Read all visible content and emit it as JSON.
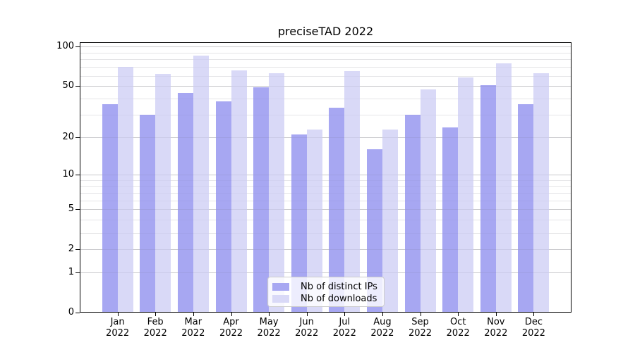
{
  "title": "preciseTAD 2022",
  "chart_data": {
    "type": "bar",
    "title": "preciseTAD 2022",
    "categories": [
      "Jan",
      "Feb",
      "Mar",
      "Apr",
      "May",
      "Jun",
      "Jul",
      "Aug",
      "Sep",
      "Oct",
      "Nov",
      "Dec"
    ],
    "year_label": "2022",
    "series": [
      {
        "name": "Nb of distinct IPs",
        "color": "#a7a7f2",
        "values": [
          36,
          30,
          44,
          38,
          49,
          21,
          34,
          16,
          30,
          24,
          51,
          36
        ]
      },
      {
        "name": "Nb of downloads",
        "color": "#d9d9f7",
        "values": [
          70,
          62,
          85,
          66,
          63,
          23,
          65,
          23,
          47,
          58,
          75,
          63
        ]
      }
    ],
    "y_ticks": [
      0,
      1,
      2,
      5,
      10,
      20,
      50,
      100
    ],
    "y_scale": "log10(1+x)",
    "ylim": [
      0,
      107
    ],
    "grid": true,
    "legend_position": "bottom-center"
  }
}
